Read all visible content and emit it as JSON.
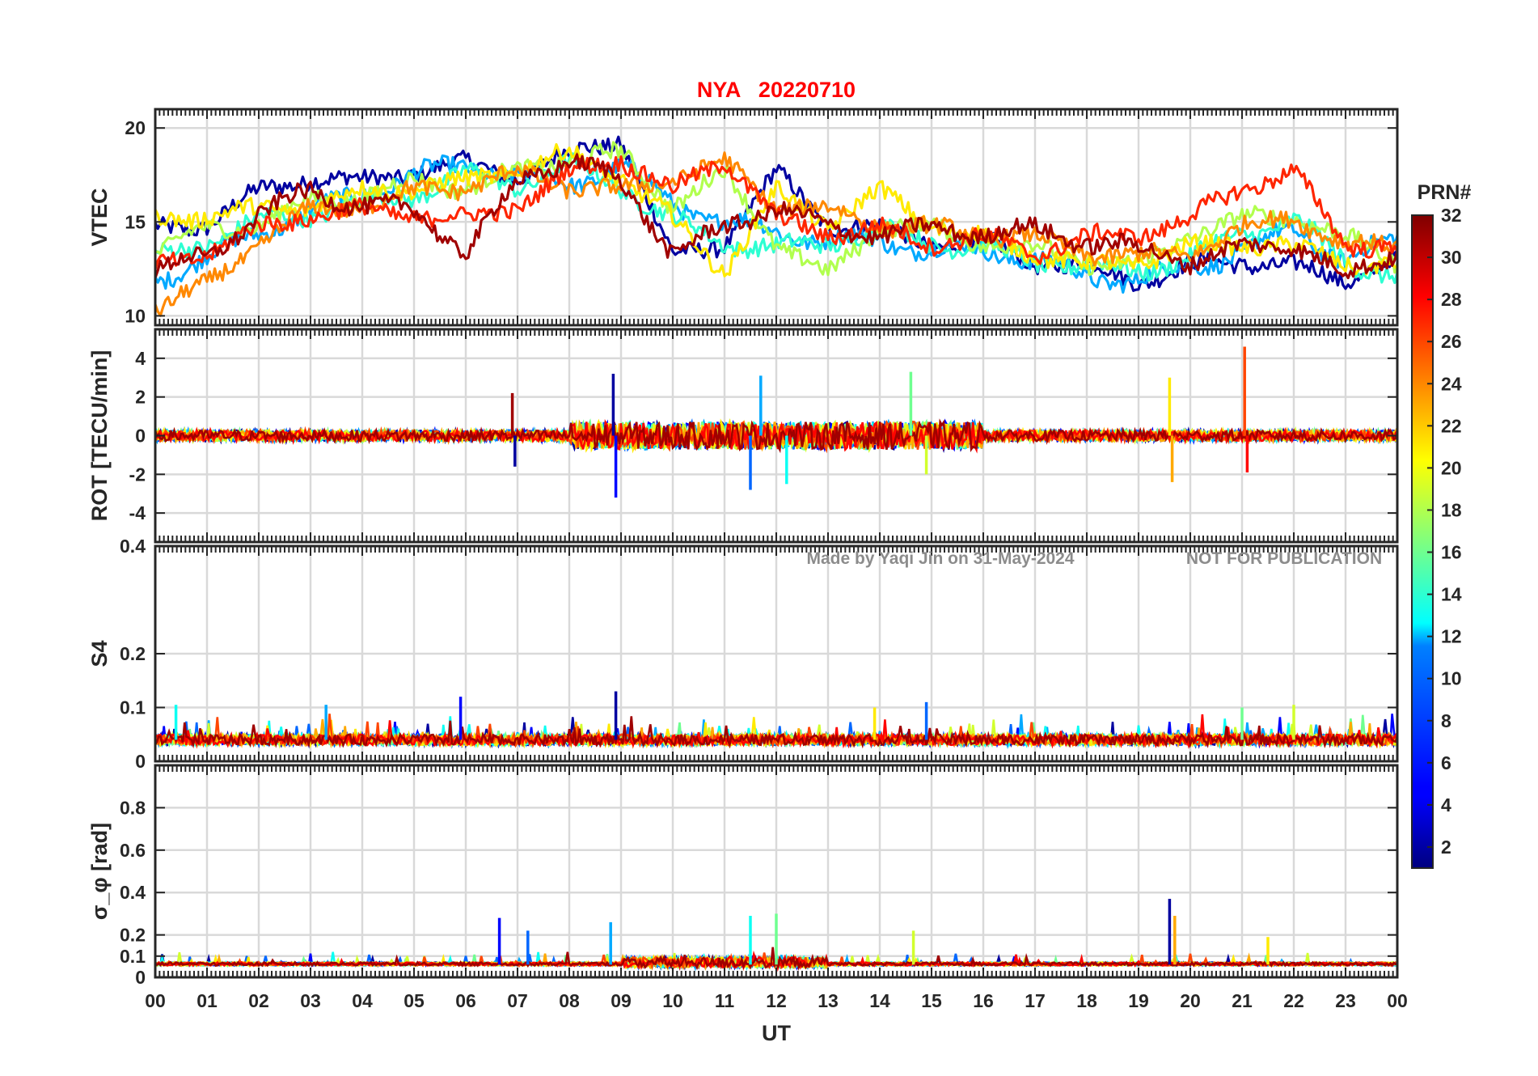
{
  "chart_data": [
    {
      "type": "line",
      "panel": "vtec",
      "title": "NYA   20220710",
      "ylabel": "VTEC",
      "ylim": [
        9.5,
        21
      ],
      "yticks": [
        10,
        15,
        20
      ],
      "ytick_labels": [
        "10",
        "15",
        "20"
      ],
      "xlim": [
        0,
        24
      ],
      "grid": true,
      "series": [
        {
          "prn": 2,
          "x": [
            0,
            1,
            2,
            3,
            4,
            5,
            6,
            7,
            8,
            9,
            10,
            11,
            12,
            13,
            14,
            15,
            16,
            17,
            18,
            19,
            20,
            21,
            22,
            23,
            24
          ],
          "y": [
            14.5,
            15.0,
            16.5,
            17.5,
            17.0,
            17.8,
            18.0,
            17.5,
            18.5,
            19.5,
            13.0,
            14.0,
            17.5,
            15.0,
            14.5,
            14.0,
            13.8,
            13.0,
            12.5,
            12.0,
            12.5,
            13.0,
            12.5,
            12.0,
            13.0
          ]
        },
        {
          "prn": 10,
          "x": [
            0,
            1,
            2,
            3,
            4,
            5,
            6,
            7,
            8,
            9,
            10,
            11,
            12,
            13,
            14,
            15,
            16,
            17,
            18,
            19,
            20,
            21,
            22,
            23,
            24
          ],
          "y": [
            12.0,
            13.0,
            14.5,
            15.5,
            16.5,
            17.5,
            18.0,
            17.5,
            17.0,
            18.0,
            16.0,
            15.0,
            14.5,
            14.0,
            14.0,
            13.5,
            13.5,
            13.0,
            12.0,
            12.0,
            12.5,
            13.5,
            14.5,
            13.0,
            14.0
          ]
        },
        {
          "prn": 14,
          "x": [
            0,
            1,
            2,
            3,
            4,
            5,
            6,
            7,
            8,
            9,
            10,
            11,
            12,
            13,
            14,
            15,
            16,
            17,
            18,
            19,
            20,
            21,
            22,
            23,
            24
          ],
          "y": [
            13.0,
            14.0,
            15.0,
            15.5,
            16.0,
            16.5,
            17.5,
            17.0,
            18.0,
            17.0,
            15.0,
            14.0,
            13.5,
            14.0,
            14.5,
            14.0,
            13.5,
            13.0,
            12.5,
            12.5,
            13.0,
            14.5,
            15.0,
            13.0,
            12.0
          ]
        },
        {
          "prn": 18,
          "x": [
            0,
            1,
            2,
            3,
            4,
            5,
            6,
            7,
            8,
            9,
            10,
            11,
            12,
            13,
            14,
            15,
            16,
            17,
            18,
            19,
            20,
            21,
            22,
            23,
            24
          ],
          "y": [
            13.5,
            14.5,
            15.0,
            16.0,
            16.5,
            17.0,
            17.0,
            17.5,
            18.5,
            18.5,
            16.0,
            17.5,
            14.0,
            12.0,
            15.0,
            14.5,
            14.0,
            13.5,
            13.0,
            12.5,
            14.5,
            15.0,
            15.5,
            14.0,
            13.0
          ]
        },
        {
          "prn": 21,
          "x": [
            0,
            1,
            2,
            3,
            4,
            5,
            6,
            7,
            8,
            9,
            10,
            11,
            12,
            13,
            14,
            15,
            16,
            17,
            18,
            19,
            20,
            21,
            22,
            23,
            24
          ],
          "y": [
            15.0,
            15.5,
            15.5,
            16.0,
            16.5,
            17.0,
            17.0,
            18.0,
            18.5,
            17.5,
            15.0,
            12.5,
            16.5,
            15.0,
            16.5,
            15.0,
            14.0,
            13.5,
            12.5,
            13.0,
            13.5,
            14.0,
            13.5,
            13.0,
            12.5
          ]
        },
        {
          "prn": 24,
          "x": [
            0,
            1,
            2,
            3,
            4,
            5,
            6,
            7,
            8,
            9,
            10,
            11,
            12,
            13,
            14,
            15,
            16,
            17,
            18,
            19,
            20,
            21,
            22,
            23,
            24
          ],
          "y": [
            10.5,
            11.5,
            14.0,
            15.5,
            16.0,
            16.5,
            17.0,
            17.5,
            17.0,
            16.5,
            17.5,
            18.0,
            16.0,
            15.5,
            15.0,
            14.5,
            14.5,
            14.0,
            13.5,
            13.0,
            13.5,
            14.5,
            15.5,
            13.5,
            14.0
          ]
        },
        {
          "prn": 27,
          "x": [
            0,
            1,
            2,
            3,
            4,
            5,
            6,
            7,
            8,
            9,
            10,
            11,
            12,
            13,
            14,
            15,
            16,
            17,
            18,
            19,
            20,
            21,
            22,
            23,
            24
          ],
          "y": [
            12.5,
            13.5,
            14.5,
            15.5,
            15.5,
            15.5,
            15.0,
            16.0,
            17.5,
            18.5,
            16.5,
            18.5,
            15.0,
            14.5,
            14.5,
            14.0,
            14.0,
            13.5,
            14.0,
            14.5,
            15.0,
            17.0,
            17.5,
            14.0,
            13.5
          ]
        },
        {
          "prn": 31,
          "x": [
            0,
            1,
            2,
            3,
            4,
            5,
            6,
            7,
            8,
            9,
            10,
            11,
            12,
            13,
            14,
            15,
            16,
            17,
            18,
            19,
            20,
            21,
            22,
            23,
            24
          ],
          "y": [
            12.5,
            13.0,
            15.5,
            16.5,
            16.0,
            15.5,
            13.5,
            17.0,
            18.5,
            17.0,
            13.5,
            14.5,
            16.0,
            14.5,
            14.5,
            14.5,
            14.5,
            14.5,
            14.0,
            13.5,
            13.0,
            13.5,
            14.0,
            12.0,
            13.5
          ]
        }
      ]
    },
    {
      "type": "line",
      "panel": "rot",
      "ylabel": "ROT [TECU/min]",
      "ylim": [
        -5.5,
        5.5
      ],
      "yticks": [
        -4,
        -2,
        0,
        2,
        4
      ],
      "ytick_labels": [
        "-4",
        "-2",
        "0",
        "2",
        "4"
      ],
      "xlim": [
        0,
        24
      ],
      "grid": true,
      "baseline": 0,
      "spikes": [
        {
          "x": 8.85,
          "y": 3.2
        },
        {
          "x": 8.9,
          "y": -3.2
        },
        {
          "x": 11.5,
          "y": -2.8
        },
        {
          "x": 11.7,
          "y": 3.1
        },
        {
          "x": 12.2,
          "y": -2.5
        },
        {
          "x": 14.6,
          "y": 3.3
        },
        {
          "x": 14.9,
          "y": -2.0
        },
        {
          "x": 19.6,
          "y": 3.0
        },
        {
          "x": 19.65,
          "y": -2.4
        },
        {
          "x": 21.05,
          "y": 4.6
        },
        {
          "x": 21.1,
          "y": -1.9
        },
        {
          "x": 6.9,
          "y": 2.2
        },
        {
          "x": 6.95,
          "y": -1.6
        }
      ]
    },
    {
      "type": "line",
      "panel": "s4",
      "ylabel": "S4",
      "ylim": [
        0,
        0.4
      ],
      "yticks": [
        0,
        0.1,
        0.2,
        0.4
      ],
      "ytick_labels": [
        "0",
        "0.1",
        "0.2",
        "0.4"
      ],
      "xlim": [
        0,
        24
      ],
      "grid": true,
      "annotations": [
        "Made by Yaqi Jin on 31-May-2024",
        "NOT FOR PUBLICATION"
      ],
      "baseline": 0.04,
      "peaks": [
        {
          "x": 8.9,
          "y": 0.13
        },
        {
          "x": 5.9,
          "y": 0.12
        },
        {
          "x": 14.9,
          "y": 0.11
        },
        {
          "x": 3.3,
          "y": 0.105
        },
        {
          "x": 0.4,
          "y": 0.105
        },
        {
          "x": 21.0,
          "y": 0.1
        },
        {
          "x": 22.0,
          "y": 0.105
        },
        {
          "x": 13.9,
          "y": 0.1
        }
      ]
    },
    {
      "type": "line",
      "panel": "sigma_phi",
      "ylabel": "σ_φ [rad]",
      "ylim": [
        0,
        1
      ],
      "yticks": [
        0,
        0.1,
        0.2,
        0.4,
        0.6,
        0.8
      ],
      "ytick_labels": [
        "0",
        "0.1",
        "0.2",
        "0.4",
        "0.6",
        "0.8"
      ],
      "xlim": [
        0,
        24
      ],
      "grid": true,
      "baseline": 0.06,
      "peaks": [
        {
          "x": 19.6,
          "y": 0.37
        },
        {
          "x": 6.65,
          "y": 0.28
        },
        {
          "x": 7.2,
          "y": 0.22
        },
        {
          "x": 8.8,
          "y": 0.26
        },
        {
          "x": 11.5,
          "y": 0.29
        },
        {
          "x": 12.0,
          "y": 0.3
        },
        {
          "x": 14.65,
          "y": 0.22
        },
        {
          "x": 21.5,
          "y": 0.19
        },
        {
          "x": 19.7,
          "y": 0.29
        }
      ]
    }
  ],
  "x_axis": {
    "label": "UT",
    "tick_labels": [
      "00",
      "01",
      "02",
      "03",
      "04",
      "05",
      "06",
      "07",
      "08",
      "09",
      "10",
      "11",
      "12",
      "13",
      "14",
      "15",
      "16",
      "17",
      "18",
      "19",
      "20",
      "21",
      "22",
      "23",
      "00"
    ]
  },
  "colorbar": {
    "title": "PRN#",
    "range": [
      1,
      32
    ],
    "tick_labels": [
      "2",
      "4",
      "6",
      "8",
      "10",
      "12",
      "14",
      "16",
      "18",
      "20",
      "22",
      "24",
      "26",
      "28",
      "30",
      "32"
    ],
    "colormap": "jet"
  },
  "colors": {
    "title": "#ff0000",
    "text": "#262626",
    "watermark": "#8c8c8c",
    "grid": "#d9d9d9"
  }
}
